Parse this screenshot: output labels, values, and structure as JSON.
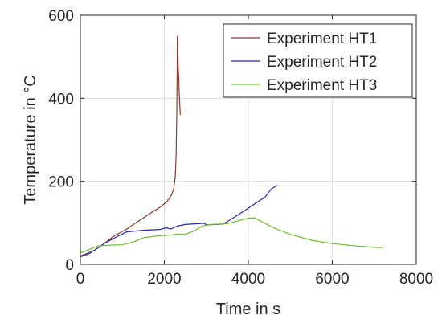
{
  "chart_data": {
    "type": "line",
    "xlabel": "Time in s",
    "ylabel": "Temperature in °C",
    "xlim": [
      0,
      8000
    ],
    "ylim": [
      0,
      600
    ],
    "xticks": [
      0,
      2000,
      4000,
      6000,
      8000
    ],
    "yticks": [
      0,
      200,
      400,
      600
    ],
    "grid": true,
    "legend_position": "top-right",
    "series": [
      {
        "name": "Experiment HT1",
        "color": "#8B3A2E",
        "points": [
          [
            0,
            18
          ],
          [
            200,
            25
          ],
          [
            500,
            45
          ],
          [
            800,
            68
          ],
          [
            1100,
            85
          ],
          [
            1400,
            105
          ],
          [
            1700,
            125
          ],
          [
            1900,
            138
          ],
          [
            2050,
            150
          ],
          [
            2150,
            163
          ],
          [
            2220,
            180
          ],
          [
            2260,
            210
          ],
          [
            2280,
            260
          ],
          [
            2295,
            350
          ],
          [
            2305,
            450
          ],
          [
            2310,
            550
          ],
          [
            2330,
            480
          ],
          [
            2360,
            400
          ],
          [
            2380,
            360
          ]
        ]
      },
      {
        "name": "Experiment HT2",
        "color": "#2626B0",
        "points": [
          [
            0,
            20
          ],
          [
            300,
            32
          ],
          [
            600,
            52
          ],
          [
            900,
            68
          ],
          [
            1100,
            78
          ],
          [
            1500,
            82
          ],
          [
            1900,
            84
          ],
          [
            2050,
            88
          ],
          [
            2150,
            85
          ],
          [
            2300,
            92
          ],
          [
            2500,
            96
          ],
          [
            2800,
            98
          ],
          [
            2950,
            99
          ],
          [
            3000,
            95
          ],
          [
            3400,
            97
          ],
          [
            3500,
            103
          ],
          [
            3800,
            122
          ],
          [
            4100,
            142
          ],
          [
            4400,
            162
          ],
          [
            4550,
            182
          ],
          [
            4650,
            188
          ],
          [
            4700,
            190
          ]
        ]
      },
      {
        "name": "Experiment HT3",
        "color": "#6DBE2E",
        "points": [
          [
            0,
            28
          ],
          [
            200,
            35
          ],
          [
            400,
            44
          ],
          [
            700,
            46
          ],
          [
            1000,
            47
          ],
          [
            1300,
            55
          ],
          [
            1500,
            64
          ],
          [
            1800,
            68
          ],
          [
            2100,
            70
          ],
          [
            2300,
            73
          ],
          [
            2500,
            72
          ],
          [
            2700,
            80
          ],
          [
            2900,
            92
          ],
          [
            3100,
            96
          ],
          [
            3500,
            98
          ],
          [
            3800,
            106
          ],
          [
            4000,
            111
          ],
          [
            4150,
            112
          ],
          [
            4300,
            104
          ],
          [
            4600,
            88
          ],
          [
            5000,
            72
          ],
          [
            5500,
            58
          ],
          [
            6000,
            50
          ],
          [
            6500,
            45
          ],
          [
            7000,
            41
          ],
          [
            7200,
            40
          ]
        ]
      }
    ]
  }
}
